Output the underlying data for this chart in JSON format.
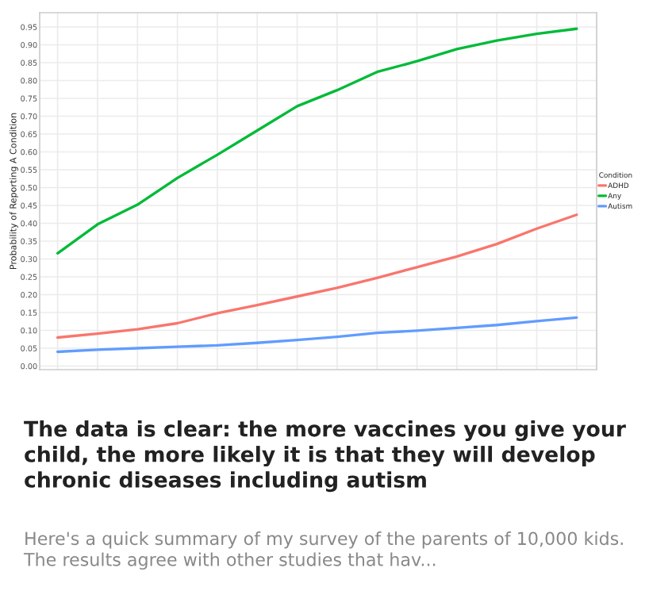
{
  "chart_data": {
    "type": "line",
    "title": "The data is clear: the more vaccines you give your child, the more likely it is that they will develop chronic diseases including autism",
    "subtitle": "Here's a quick summary of my survey of the parents of 10,000 kids. The results agree with other studies that hav...",
    "ylabel": "Probability of Reporting A Condition",
    "legend_title": "Condition",
    "categories": [
      null,
      null,
      null,
      null,
      null,
      null,
      null,
      null,
      null,
      null,
      null,
      null,
      null,
      null
    ],
    "series": [
      {
        "name": "ADHD",
        "color": "#f8766d",
        "values": [
          0.08,
          0.091,
          0.103,
          0.12,
          0.148,
          0.171,
          0.195,
          0.219,
          0.247,
          0.277,
          0.307,
          0.342,
          0.385,
          0.424
        ]
      },
      {
        "name": "Any",
        "color": "#00ba38",
        "values": [
          0.316,
          0.397,
          0.452,
          0.527,
          0.592,
          0.66,
          0.728,
          0.773,
          0.824,
          0.854,
          0.888,
          0.912,
          0.931,
          0.945
        ]
      },
      {
        "name": "Autism",
        "color": "#619cff",
        "values": [
          0.04,
          0.046,
          0.05,
          0.054,
          0.058,
          0.065,
          0.073,
          0.082,
          0.093,
          0.099,
          0.107,
          0.115,
          0.126,
          0.136
        ]
      }
    ],
    "ylim": [
      -0.01,
      0.99
    ],
    "yticks": [
      {
        "value": 0.0,
        "label": "0.00"
      },
      {
        "value": 0.05,
        "label": "0.05"
      },
      {
        "value": 0.1,
        "label": "0.10"
      },
      {
        "value": 0.15,
        "label": "0.15"
      },
      {
        "value": 0.2,
        "label": "0.20"
      },
      {
        "value": 0.25,
        "label": "0.25"
      },
      {
        "value": 0.3,
        "label": "0.30"
      },
      {
        "value": 0.35,
        "label": "0.35"
      },
      {
        "value": 0.4,
        "label": "0.40"
      },
      {
        "value": 0.45,
        "label": "0.45"
      },
      {
        "value": 0.5,
        "label": "0.50"
      },
      {
        "value": 0.55,
        "label": "0.55"
      },
      {
        "value": 0.6,
        "label": "0.60"
      },
      {
        "value": 0.65,
        "label": "0.65"
      },
      {
        "value": 0.7,
        "label": "0.70"
      },
      {
        "value": 0.75,
        "label": "0.75"
      },
      {
        "value": 0.8,
        "label": "0.80"
      },
      {
        "value": 0.85,
        "label": "0.85"
      },
      {
        "value": 0.9,
        "label": "0.90"
      },
      {
        "value": 0.95,
        "label": "0.95"
      }
    ],
    "grid": true,
    "legend": "right",
    "tick_labels": "y"
  }
}
